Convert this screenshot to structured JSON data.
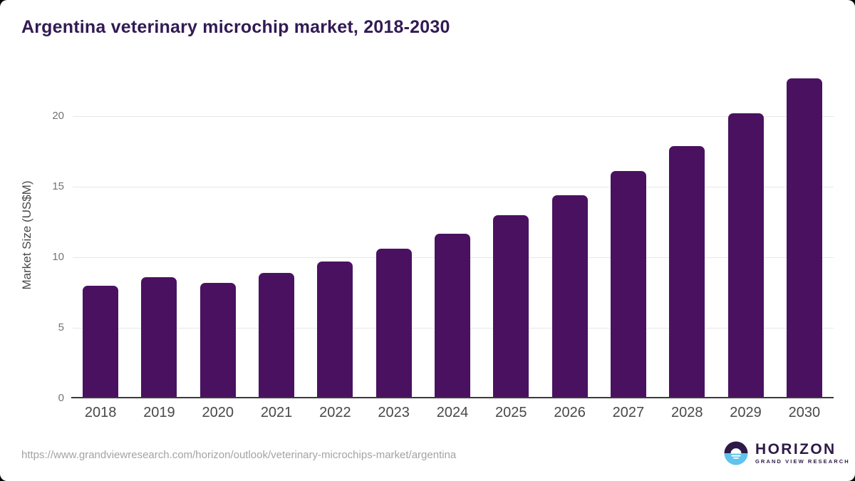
{
  "page": {
    "title": "Argentina veterinary microchip market, 2018-2030"
  },
  "chart_data": {
    "type": "bar",
    "title": "Argentina veterinary microchip market, 2018-2030",
    "categories": [
      "2018",
      "2019",
      "2020",
      "2021",
      "2022",
      "2023",
      "2024",
      "2025",
      "2026",
      "2027",
      "2028",
      "2029",
      "2030"
    ],
    "values": [
      8.0,
      8.6,
      8.2,
      8.9,
      9.7,
      10.6,
      11.7,
      13.0,
      14.4,
      16.1,
      17.9,
      20.2,
      22.7
    ],
    "xlabel": "",
    "ylabel": "Market Size (US$M)",
    "ylim": [
      0,
      23.2
    ],
    "yticks": [
      0,
      5,
      10,
      15,
      20
    ],
    "grid": true,
    "legend": "none",
    "bar_color": "#4a1161"
  },
  "footer": {
    "source_url": "https://www.grandviewresearch.com/horizon/outlook/veterinary-microchips-market/argentina",
    "logo": {
      "brand": "HORIZON",
      "sub_brand": "GRAND VIEW RESEARCH"
    }
  },
  "colors": {
    "title_text": "#321a54",
    "bar": "#4a1161",
    "axis_line": "#3a3a3a",
    "gridline": "#e7e7e7",
    "y_tick_text": "#737373",
    "x_tick_text": "#484848",
    "axis_title_text": "#4a4a4a",
    "url_text": "#a3a3a3",
    "logo_purple": "#2d1a47",
    "logo_blue": "#5fc3ec",
    "background": "#ffffff"
  }
}
